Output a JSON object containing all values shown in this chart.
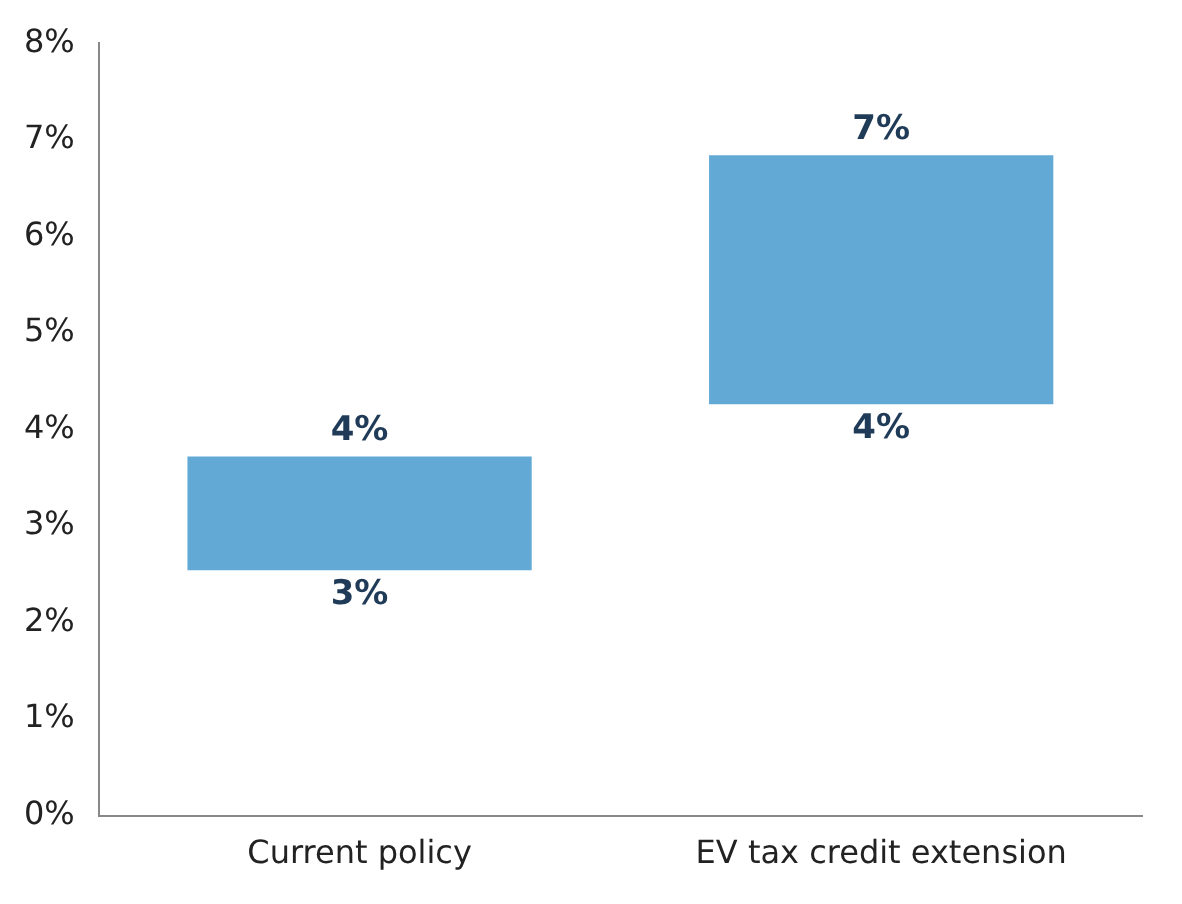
{
  "chart_data": {
    "type": "bar",
    "categories": [
      "Current policy",
      "EV tax credit extension"
    ],
    "base": [
      2.54,
      4.26
    ],
    "values": [
      1.18,
      2.58
    ],
    "color": "#62a9d6",
    "ylim": [
      0,
      8
    ],
    "yticks": [
      {
        "value": 0,
        "label": "0%"
      },
      {
        "value": 1,
        "label": "1%"
      },
      {
        "value": 2,
        "label": "2%"
      },
      {
        "value": 3,
        "label": "3%"
      },
      {
        "value": 4,
        "label": "4%"
      },
      {
        "value": 5,
        "label": "5%"
      },
      {
        "value": 6,
        "label": "6%"
      },
      {
        "value": 7,
        "label": "7%"
      },
      {
        "value": 8,
        "label": "8%"
      }
    ],
    "grid": false,
    "legend": false,
    "annotations": [
      {
        "text": "4%",
        "x": "Current policy",
        "y": 3.72
      },
      {
        "text": "3%",
        "x": "Current policy",
        "y": 2.54
      },
      {
        "text": "7%",
        "x": "EV tax credit extension",
        "y": 6.84
      },
      {
        "text": "4%",
        "x": "EV tax credit extension",
        "y": 4.26
      }
    ]
  }
}
